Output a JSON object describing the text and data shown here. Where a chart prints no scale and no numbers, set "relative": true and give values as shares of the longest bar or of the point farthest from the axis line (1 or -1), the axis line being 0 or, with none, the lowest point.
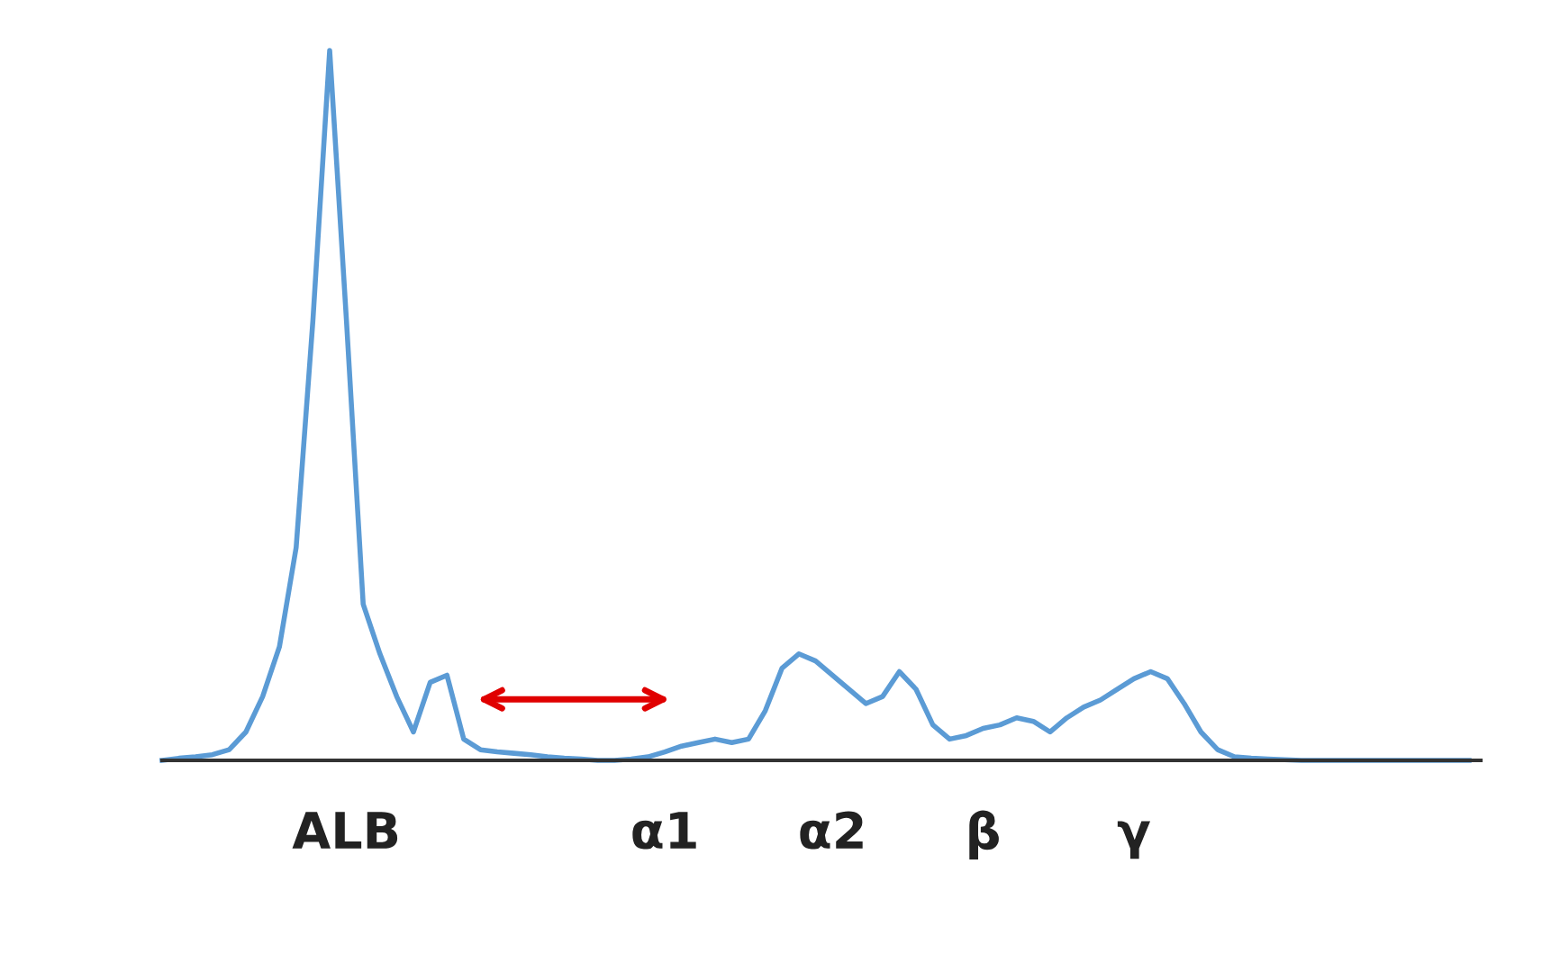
{
  "chart_data": {
    "type": "line",
    "relative": true,
    "categories": [
      null,
      null,
      null,
      null,
      null,
      null,
      null,
      null,
      null,
      null,
      null,
      "ALB",
      null,
      null,
      null,
      null,
      null,
      null,
      null,
      null,
      null,
      null,
      null,
      null,
      null,
      null,
      null,
      null,
      null,
      null,
      "α1",
      null,
      null,
      null,
      null,
      null,
      null,
      null,
      null,
      null,
      "α2",
      null,
      null,
      null,
      null,
      null,
      null,
      null,
      null,
      "β",
      null,
      null,
      null,
      null,
      null,
      null,
      null,
      null,
      "γ",
      null,
      null,
      null,
      null,
      null,
      null,
      null,
      null,
      null,
      null,
      null,
      null,
      null,
      null,
      null,
      null,
      null,
      null,
      null,
      null
    ],
    "series": [
      {
        "color": "#5b9bd5",
        "values": [
          0,
          0.003,
          0.005,
          0.008,
          0.015,
          0.04,
          0.09,
          0.16,
          0.3,
          0.62,
          1.0,
          0.62,
          0.22,
          0.15,
          0.09,
          0.04,
          0.11,
          0.12,
          0.03,
          0.015,
          0.012,
          0.01,
          0.008,
          0.005,
          0.003,
          0.002,
          0,
          0,
          0.002,
          0.005,
          0.012,
          0.02,
          0.025,
          0.03,
          0.025,
          0.03,
          0.07,
          0.13,
          0.15,
          0.14,
          0.12,
          0.1,
          0.08,
          0.09,
          0.125,
          0.1,
          0.05,
          0.03,
          0.035,
          0.045,
          0.05,
          0.06,
          0.055,
          0.04,
          0.06,
          0.075,
          0.085,
          0.1,
          0.115,
          0.125,
          0.115,
          0.08,
          0.04,
          0.015,
          0.005,
          0.003,
          0.002,
          0.001,
          0,
          0,
          0,
          0,
          0,
          0,
          0,
          0,
          0,
          0,
          0
        ]
      }
    ]
  }
}
